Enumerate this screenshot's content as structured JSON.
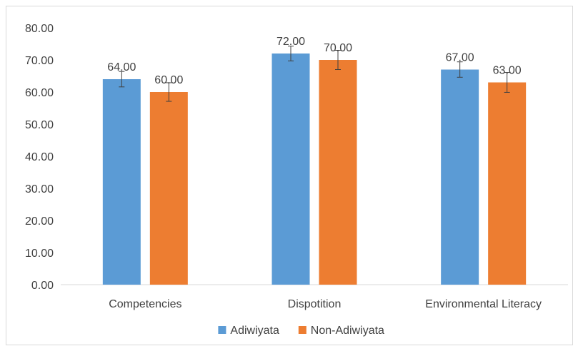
{
  "chart_data": {
    "type": "bar",
    "title": "",
    "xlabel": "",
    "ylabel": "",
    "categories": [
      "Competencies",
      "Dispotition",
      "Environmental Literacy"
    ],
    "series": [
      {
        "name": "Adiwiyata",
        "color": "#5b9bd5",
        "values": [
          64.0,
          72.0,
          67.0
        ],
        "error": [
          2.4,
          2.3,
          2.4
        ],
        "labels": [
          "64.00",
          "72.00",
          "67.00"
        ]
      },
      {
        "name": "Non-Adiwiyata",
        "color": "#ed7d31",
        "values": [
          60.0,
          70.0,
          63.0
        ],
        "error": [
          2.9,
          3.0,
          3.1
        ],
        "labels": [
          "60.00",
          "70.00",
          "63.00"
        ]
      }
    ],
    "ylim": [
      0,
      80
    ],
    "yticks": [
      "0.00",
      "10.00",
      "20.00",
      "30.00",
      "40.00",
      "50.00",
      "60.00",
      "70.00",
      "80.00"
    ],
    "grid": false,
    "legend_position": "bottom",
    "error_bars": true
  }
}
